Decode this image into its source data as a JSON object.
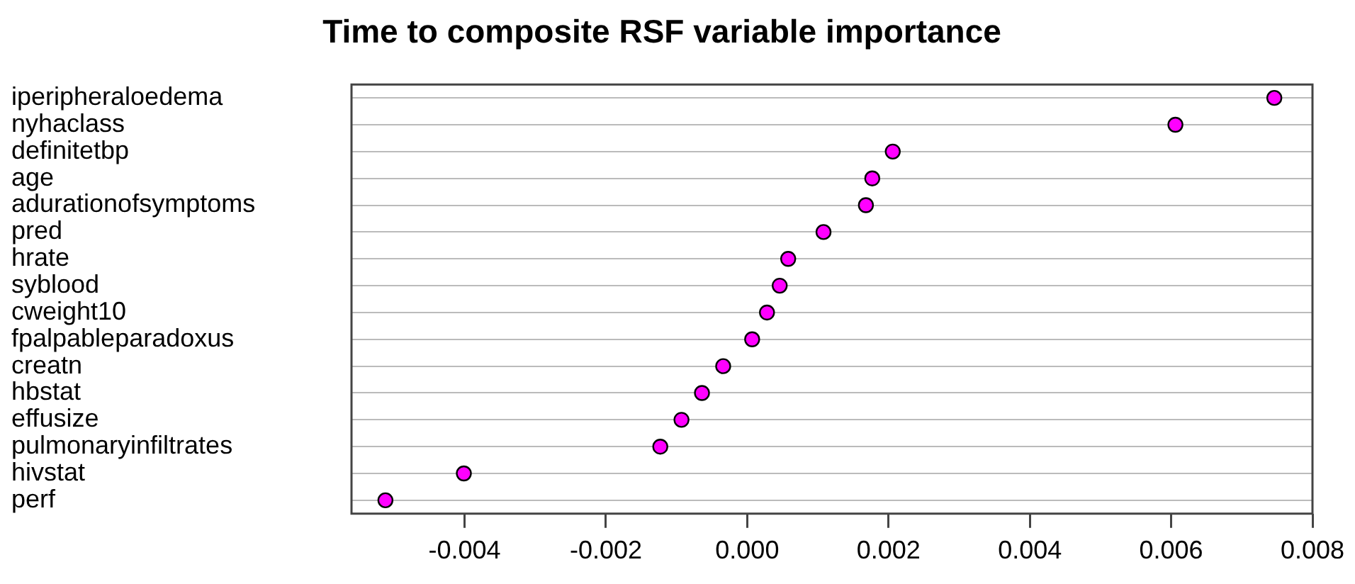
{
  "chart_data": {
    "type": "scatter",
    "orientation": "horizontal",
    "title": "Time to composite RSF variable importance",
    "categories": [
      "iperipheraloedema",
      "nyhaclass",
      "definitetbp",
      "age",
      "adurationofsymptoms",
      "pred",
      "hrate",
      "syblood",
      "cweight10",
      "fpalpableparadoxus",
      "creatn",
      "hbstat",
      "effusize",
      "pulmonaryinfiltrates",
      "hivstat",
      "perf"
    ],
    "values": [
      0.00746,
      0.00606,
      0.00206,
      0.00177,
      0.00168,
      0.00108,
      0.00058,
      0.00046,
      0.00028,
      7e-05,
      -0.00034,
      -0.00064,
      -0.00093,
      -0.00123,
      -0.00401,
      -0.00512
    ],
    "color": "#ff00ff",
    "marker": "circle",
    "xlim": [
      -0.0056,
      0.008
    ],
    "xticks": [
      {
        "value": -0.004,
        "label": "-0.004"
      },
      {
        "value": -0.002,
        "label": "-0.002"
      },
      {
        "value": 0,
        "label": "0.000"
      },
      {
        "value": 0.002,
        "label": "0.002"
      },
      {
        "value": 0.004,
        "label": "0.004"
      },
      {
        "value": 0.006,
        "label": "0.006"
      },
      {
        "value": 0.008,
        "label": "0.008"
      }
    ],
    "grid": "y"
  }
}
